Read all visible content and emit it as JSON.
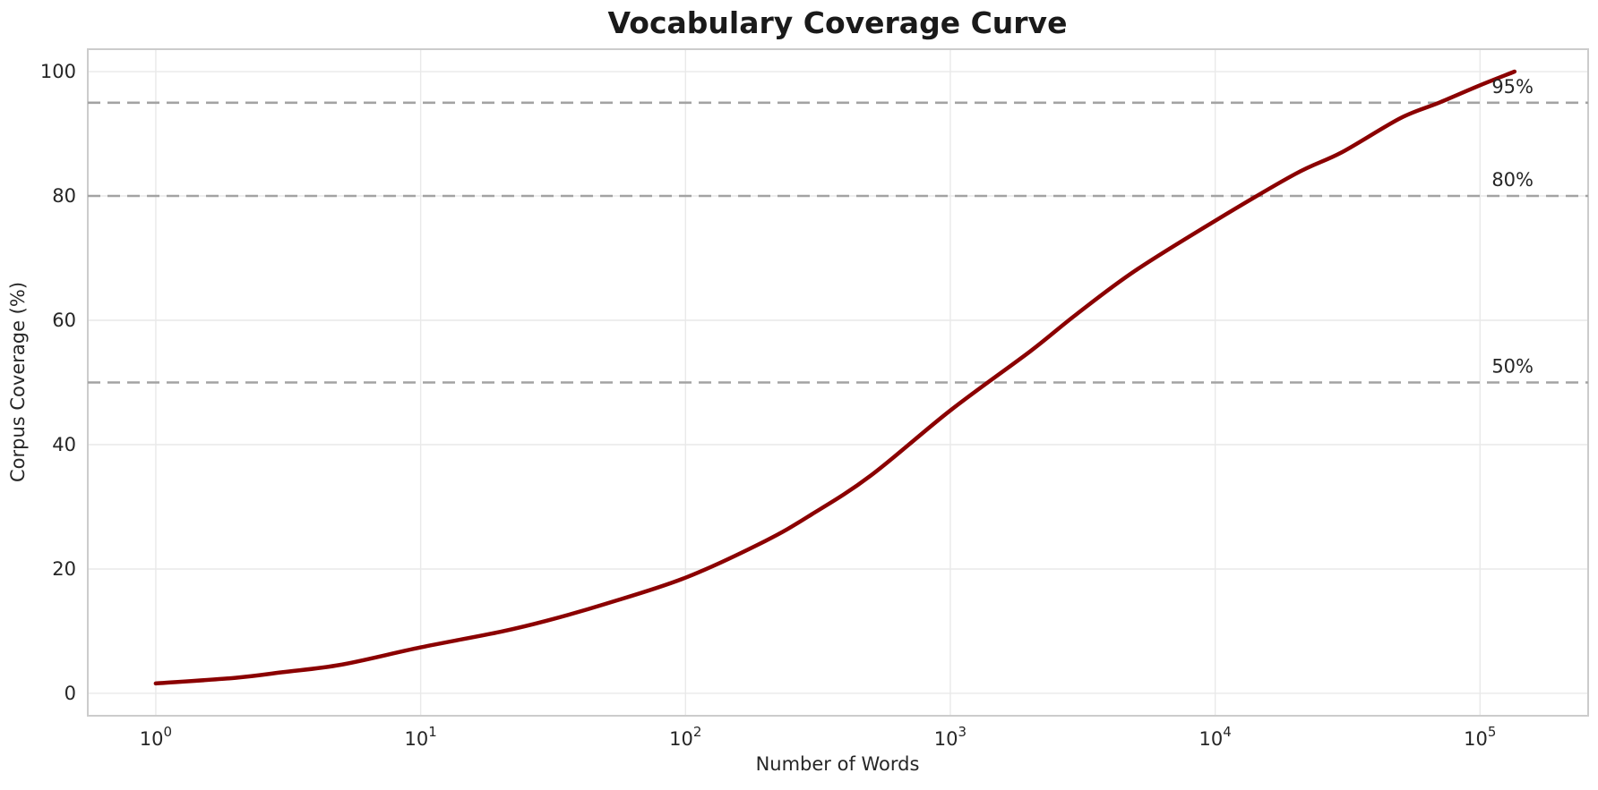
{
  "chart_data": {
    "type": "line",
    "title": "Vocabulary Coverage Curve",
    "xlabel": "Number of Words",
    "ylabel": "Corpus Coverage (%)",
    "x_scale": "log",
    "xlim": [
      0.5536,
      256000
    ],
    "ylim": [
      -3.6,
      103.6
    ],
    "x_ticks": [
      {
        "base": "10",
        "exp": "0"
      },
      {
        "base": "10",
        "exp": "1"
      },
      {
        "base": "10",
        "exp": "2"
      },
      {
        "base": "10",
        "exp": "3"
      },
      {
        "base": "10",
        "exp": "4"
      },
      {
        "base": "10",
        "exp": "5"
      }
    ],
    "y_ticks": [
      0,
      20,
      40,
      60,
      80,
      100
    ],
    "grid": true,
    "grid_color": "#e9e9e9",
    "spine_color": "#cccccc",
    "legend": "none",
    "series": [
      {
        "name": "coverage",
        "color": "#8B0000",
        "x": [
          1,
          2,
          3,
          5,
          10,
          20,
          30,
          50,
          100,
          200,
          300,
          500,
          1000,
          2000,
          3000,
          5000,
          10000,
          20000,
          30000,
          50000,
          70000,
          100000,
          135000
        ],
        "y": [
          1.6,
          2.5,
          3.4,
          4.6,
          7.4,
          9.9,
          11.7,
          14.4,
          18.6,
          24.5,
          28.8,
          35.0,
          45.5,
          55.0,
          61.0,
          68.0,
          76.0,
          83.5,
          87.0,
          92.5,
          95.0,
          97.8,
          100.0
        ]
      }
    ],
    "thresholds": [
      {
        "value": 50,
        "label": "50%"
      },
      {
        "value": 80,
        "label": "80%"
      },
      {
        "value": 95,
        "label": "95%"
      }
    ],
    "threshold_line_color": "#a3a3a3"
  }
}
